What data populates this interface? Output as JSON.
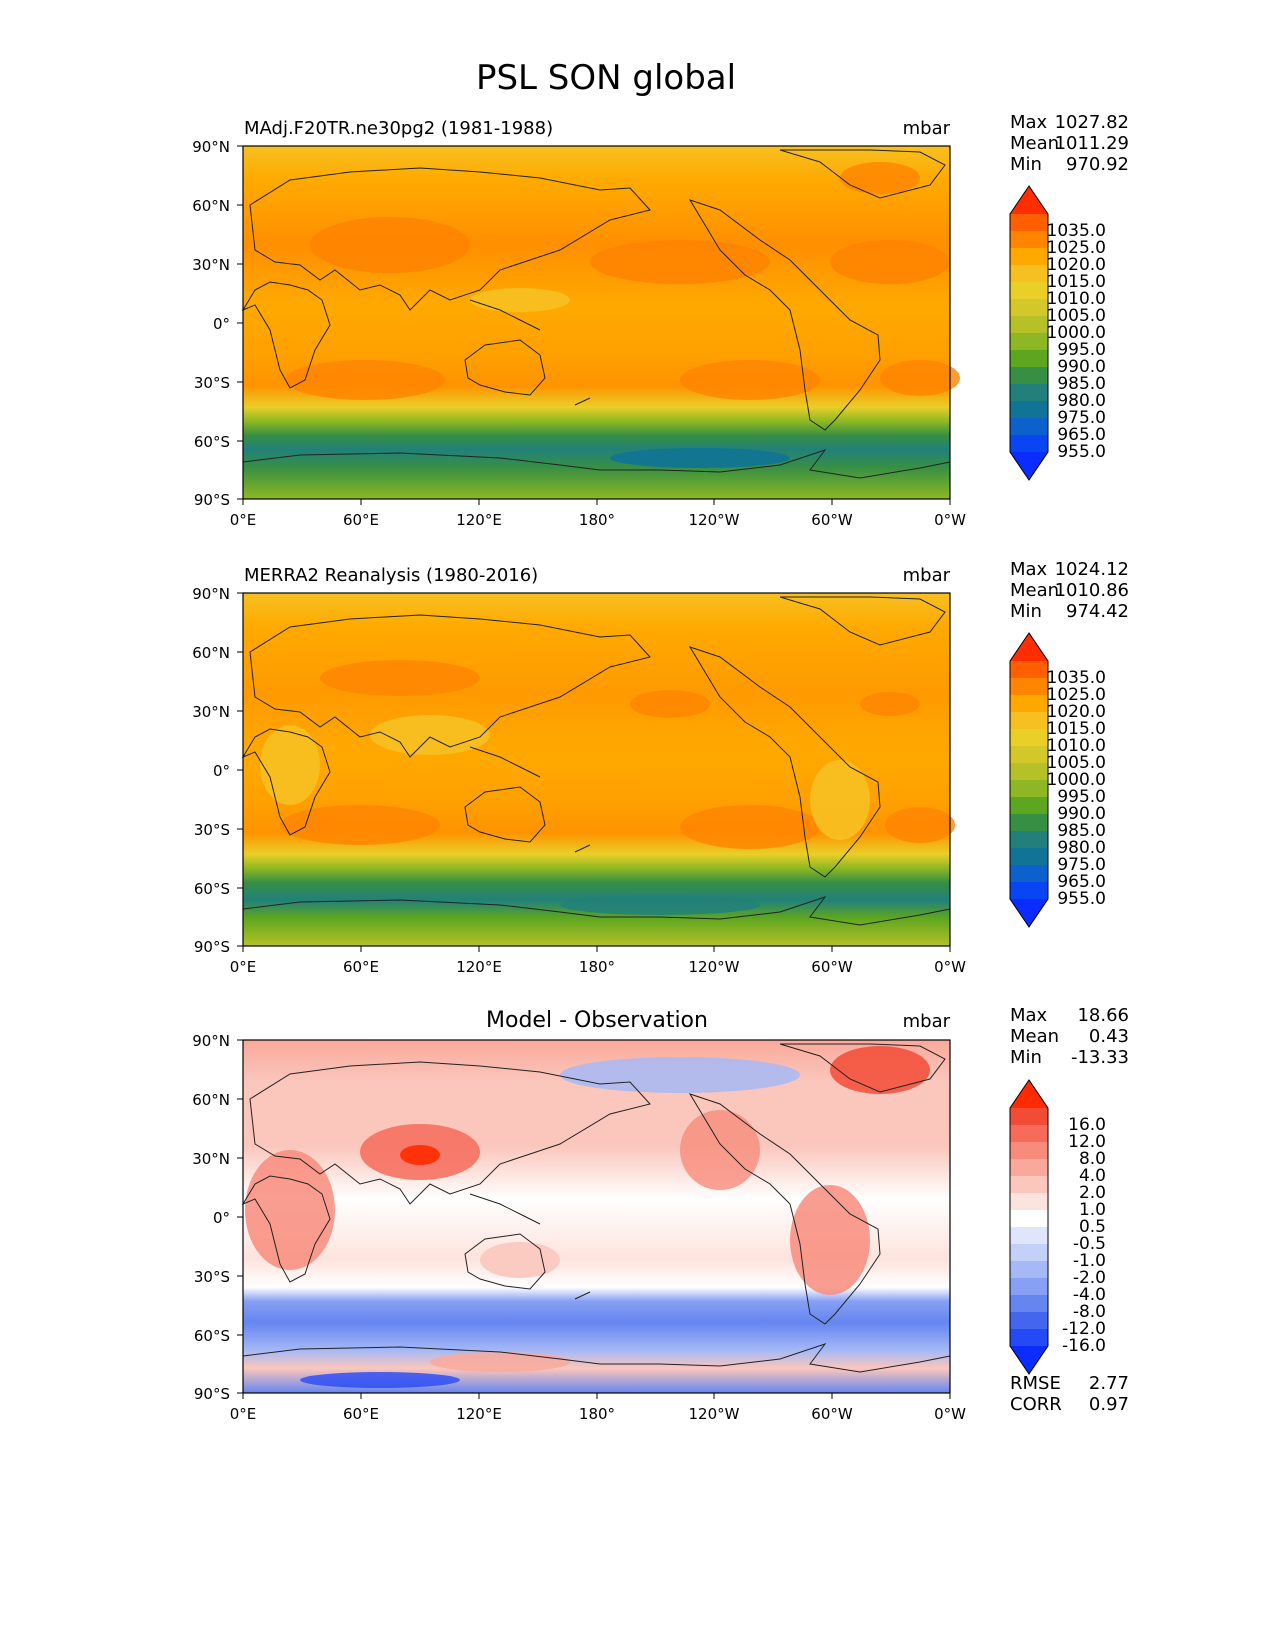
{
  "title": "PSL SON global",
  "axes": {
    "lat_ticks": [
      "90°N",
      "60°N",
      "30°N",
      "0°",
      "30°S",
      "60°S",
      "90°S"
    ],
    "lon_ticks": [
      "0°E",
      "60°E",
      "120°E",
      "180°",
      "120°W",
      "60°W",
      "0°W"
    ]
  },
  "panels": [
    {
      "id": "model",
      "left_title": "MAdj.F20TR.ne30pg2 (1981-1988)",
      "center_title": "",
      "units": "mbar",
      "stats": [
        {
          "label": "Max",
          "value": "1027.82"
        },
        {
          "label": "Mean",
          "value": "1011.29"
        },
        {
          "label": "Min",
          "value": "970.92"
        }
      ],
      "colorbar": {
        "labels": [
          "1035.0",
          "1025.0",
          "1020.0",
          "1015.0",
          "1010.0",
          "1005.0",
          "1000.0",
          "995.0",
          "990.0",
          "985.0",
          "980.0",
          "975.0",
          "965.0",
          "955.0"
        ],
        "colors": [
          "#ff2d00",
          "#ff5f00",
          "#ff8400",
          "#ffa900",
          "#f7c021",
          "#e9cf28",
          "#d2c829",
          "#b5c127",
          "#8db823",
          "#5da61f",
          "#378f43",
          "#21817a",
          "#117396",
          "#0d61cc",
          "#0a45f3",
          "#0a2cff"
        ]
      }
    },
    {
      "id": "obs",
      "left_title": "MERRA2 Reanalysis (1980-2016)",
      "center_title": "",
      "units": "mbar",
      "stats": [
        {
          "label": "Max",
          "value": "1024.12"
        },
        {
          "label": "Mean",
          "value": "1010.86"
        },
        {
          "label": "Min",
          "value": "974.42"
        }
      ],
      "colorbar": {
        "labels": [
          "1035.0",
          "1025.0",
          "1020.0",
          "1015.0",
          "1010.0",
          "1005.0",
          "1000.0",
          "995.0",
          "990.0",
          "985.0",
          "980.0",
          "975.0",
          "965.0",
          "955.0"
        ],
        "colors": [
          "#ff2d00",
          "#ff5f00",
          "#ff8400",
          "#ffa900",
          "#f7c021",
          "#e9cf28",
          "#d2c829",
          "#b5c127",
          "#8db823",
          "#5da61f",
          "#378f43",
          "#21817a",
          "#117396",
          "#0d61cc",
          "#0a45f3",
          "#0a2cff"
        ]
      }
    },
    {
      "id": "diff",
      "left_title": "",
      "center_title": "Model - Observation",
      "units": "mbar",
      "stats": [
        {
          "label": "Max",
          "value": "18.66"
        },
        {
          "label": "Mean",
          "value": "0.43"
        },
        {
          "label": "Min",
          "value": "-13.33"
        }
      ],
      "colorbar": {
        "labels": [
          "16.0",
          "12.0",
          "8.0",
          "4.0",
          "2.0",
          "1.0",
          "0.5",
          "-0.5",
          "-1.0",
          "-2.0",
          "-4.0",
          "-8.0",
          "-12.0",
          "-16.0"
        ],
        "colors": [
          "#ff2a00",
          "#f24b36",
          "#f66b5a",
          "#f88c7c",
          "#f9a99b",
          "#fbc6bc",
          "#fde3dd",
          "#ffffff",
          "#dfe6fb",
          "#c3d1f8",
          "#a6b9f6",
          "#87a0f4",
          "#6585f1",
          "#4466ee",
          "#2549f7",
          "#0a2cff"
        ]
      },
      "metrics": [
        {
          "label": "RMSE",
          "value": "2.77"
        },
        {
          "label": "CORR",
          "value": "0.97"
        }
      ]
    }
  ]
}
